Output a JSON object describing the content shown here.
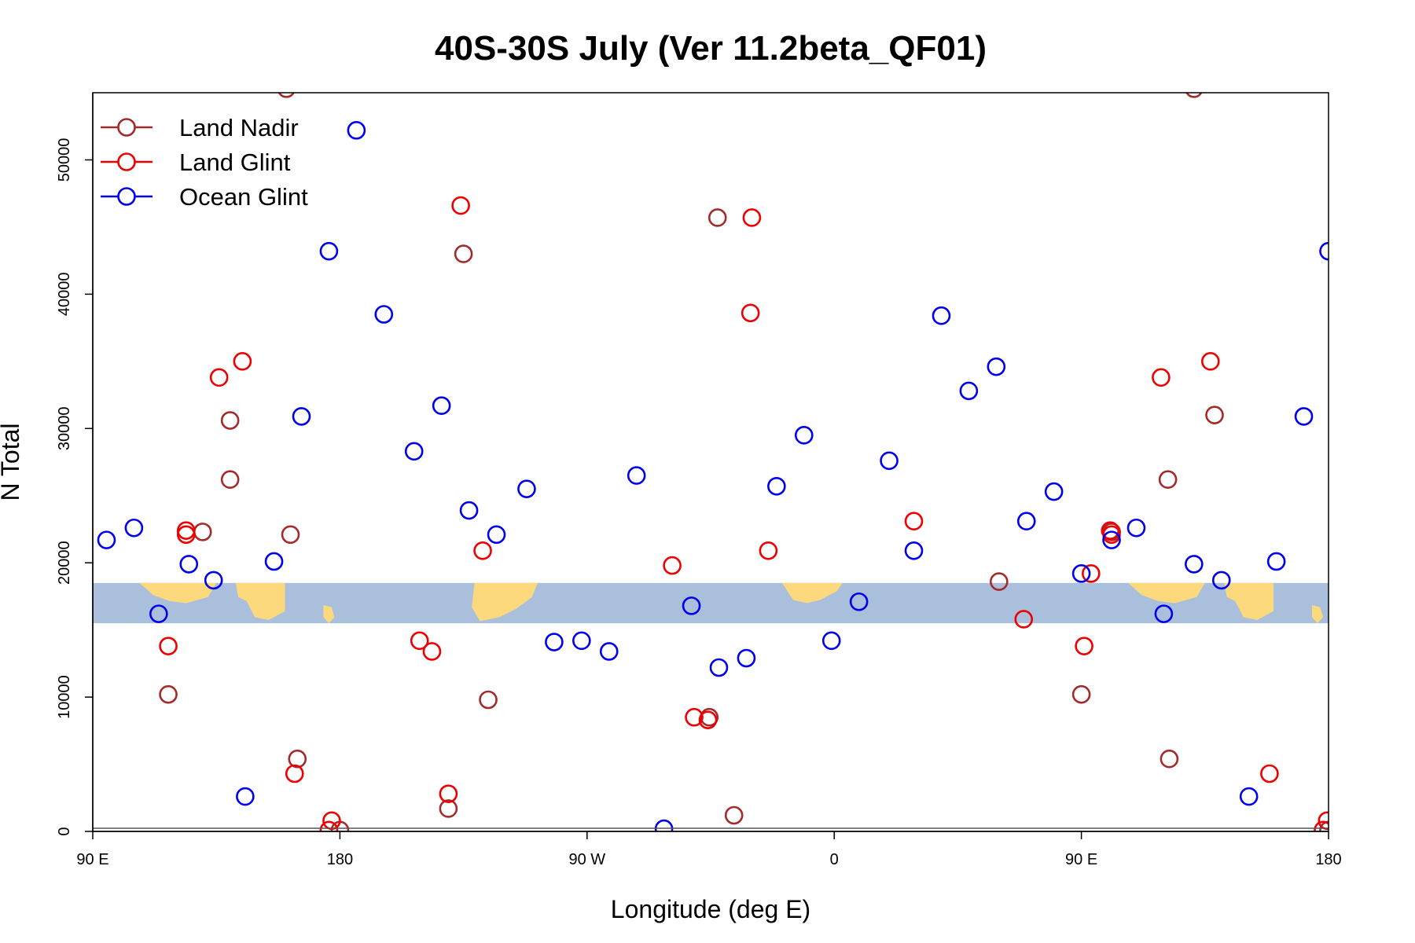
{
  "chart_data": {
    "type": "scatter",
    "title": "40S-30S July (Ver 11.2beta_QF01)",
    "xlabel": "Longitude (deg E)",
    "ylabel": "N Total",
    "xlim": [
      90,
      540
    ],
    "ylim": [
      0,
      55000
    ],
    "x_ticks": [
      {
        "value": 90,
        "label": "90 E"
      },
      {
        "value": 180,
        "label": "180"
      },
      {
        "value": 270,
        "label": "90 W"
      },
      {
        "value": 360,
        "label": "0"
      },
      {
        "value": 450,
        "label": "90 E"
      },
      {
        "value": 540,
        "label": "180"
      }
    ],
    "y_ticks": [
      {
        "value": 0,
        "label": "0"
      },
      {
        "value": 10000,
        "label": "10000"
      },
      {
        "value": 20000,
        "label": "20000"
      },
      {
        "value": 30000,
        "label": "30000"
      },
      {
        "value": 40000,
        "label": "40000"
      },
      {
        "value": 50000,
        "label": "50000"
      }
    ],
    "legend": {
      "position": "top-left"
    },
    "grid": false,
    "map_band": {
      "ymin": 15500,
      "ymax": 18500,
      "ocean_color": "#a9bfdc",
      "land_color": "#fcd97c"
    },
    "series": [
      {
        "name": "Land Nadir",
        "color": "#a52a2a",
        "x": [
          117.5,
          130,
          140,
          140,
          160.5,
          164.5,
          162,
          180,
          219.5,
          225,
          234,
          314.5,
          317.5,
          323.5,
          420,
          450,
          461,
          461,
          481.5,
          482,
          491,
          498.5,
          540
        ],
        "y": [
          10200,
          22300,
          30600,
          26200,
          55300,
          5400,
          22100,
          100,
          1700,
          43000,
          9800,
          8500,
          45700,
          1200,
          18600,
          10200,
          22300,
          22300,
          26200,
          5400,
          55300,
          31000,
          100
        ]
      },
      {
        "name": "Land Glint",
        "color": "#ee0000",
        "x": [
          117.5,
          124,
          124,
          136,
          144.5,
          163.5,
          176,
          177,
          209,
          213.5,
          219.5,
          224,
          232,
          301,
          309,
          314,
          329.5,
          330,
          336,
          389,
          429,
          451,
          453.5,
          460.5,
          461,
          479,
          497,
          518.5,
          538,
          539.5
        ],
        "y": [
          13800,
          22400,
          22100,
          33800,
          35000,
          4300,
          100,
          800,
          14200,
          13400,
          2800,
          46600,
          20900,
          19800,
          8500,
          8300,
          38600,
          45700,
          20900,
          23100,
          15800,
          13800,
          19200,
          22400,
          22100,
          33800,
          35000,
          4300,
          100,
          800
        ]
      },
      {
        "name": "Ocean Glint",
        "color": "#0000ee",
        "x": [
          95,
          105,
          114,
          125,
          134,
          145.5,
          156,
          166,
          176,
          186,
          196,
          207,
          217,
          227,
          237,
          248,
          258,
          268,
          278,
          288,
          298,
          308,
          318,
          328,
          339,
          349,
          359,
          369,
          380,
          389,
          399,
          409,
          419,
          430,
          440,
          450,
          461,
          470,
          480,
          491,
          501,
          511,
          521,
          531,
          540
        ],
        "y": [
          21700,
          22600,
          16200,
          19900,
          18700,
          2600,
          20100,
          30900,
          43200,
          52200,
          38500,
          28300,
          31700,
          23900,
          22100,
          25500,
          14100,
          14200,
          13400,
          26500,
          200,
          16800,
          12200,
          12900,
          25700,
          29500,
          14200,
          17100,
          27600,
          20900,
          38400,
          32800,
          34600,
          23100,
          25300,
          19200,
          21700,
          22600,
          16200,
          19900,
          18700,
          2600,
          20100,
          30900,
          43200
        ]
      }
    ]
  }
}
